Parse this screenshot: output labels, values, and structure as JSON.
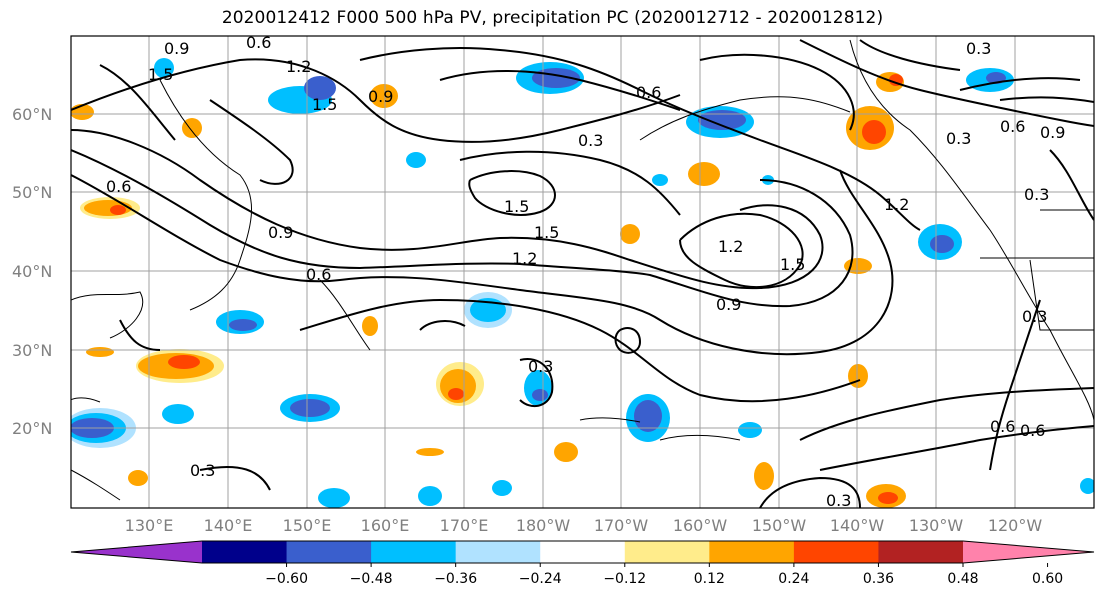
{
  "title": "2020012412 F000 500 hPa PV, precipitation PC (2020012712 - 2020012812)",
  "map": {
    "lat_labels": [
      "60°N",
      "50°N",
      "40°N",
      "30°N",
      "20°N"
    ],
    "lon_labels": [
      "130°E",
      "140°E",
      "150°E",
      "160°E",
      "170°E",
      "180°W",
      "170°W",
      "160°W",
      "150°W",
      "140°W",
      "130°W",
      "120°W"
    ],
    "contour_labels": [
      "0.6",
      "1.2",
      "0.9",
      "1.5",
      "1.5",
      "0.9",
      "0.6",
      "0.3",
      "1.5",
      "1.5",
      "1.2",
      "0.6",
      "0.9",
      "1.2",
      "1.5",
      "0.3",
      "0.3",
      "0.3",
      "0.6",
      "0.9",
      "0.3",
      "0.6",
      "0.3",
      "0.3",
      "1.2",
      "0.9",
      "0.6",
      "0.6",
      "0.3"
    ],
    "colors": {
      "contour": "#000000",
      "grid": "#a0a0a0",
      "coast": "#000000"
    }
  },
  "colorbar": {
    "ticks": [
      "−0.60",
      "−0.48",
      "−0.36",
      "−0.24",
      "−0.12",
      "0.12",
      "0.24",
      "0.36",
      "0.48",
      "0.60"
    ],
    "colors": [
      "#9932CC",
      "#00008B",
      "#3A5FCD",
      "#00BFFF",
      "#B0E2FF",
      "#FFFFFF",
      "#FFEC8B",
      "#FFA500",
      "#FF4500",
      "#B22222",
      "#FF82AB"
    ]
  }
}
